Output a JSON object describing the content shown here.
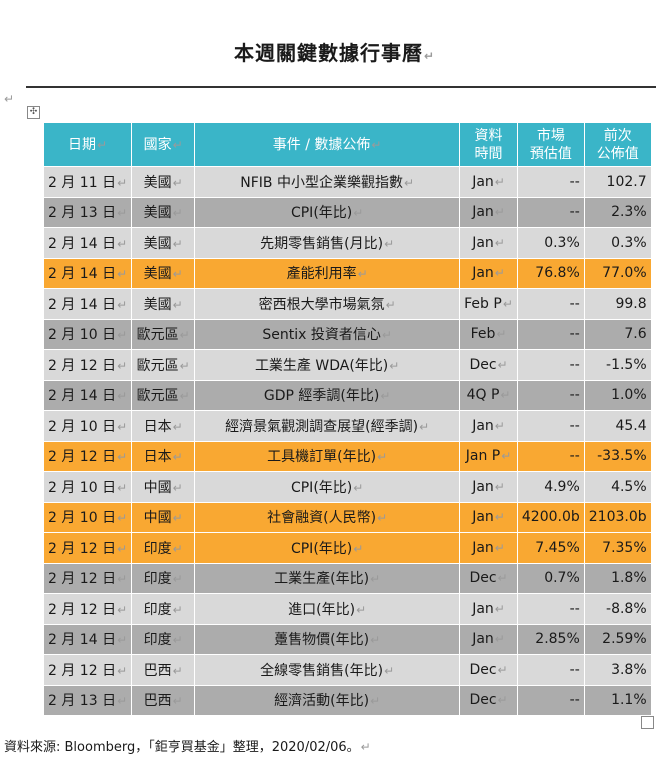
{
  "title": "本週關鍵數據行事曆",
  "paragraph_mark": "↵",
  "move_handle_glyph": "✣",
  "table": {
    "headers": {
      "date": "日期",
      "country": "國家",
      "event": "事件 / 數據公佈",
      "period": [
        "資料",
        "時間"
      ],
      "forecast": [
        "市場",
        "預估值"
      ],
      "previous": [
        "前次",
        "公佈值"
      ]
    },
    "row_colors": {
      "header": "#3ab5c8",
      "light": "#d9d9d9",
      "dark": "#acacac",
      "highlight": "#f9a832"
    },
    "rows": [
      {
        "date": "2 月 11 日",
        "country": "美國",
        "event": "NFIB 中小型企業樂觀指數",
        "period": "Jan",
        "forecast": "--",
        "previous": "102.7",
        "style": "light"
      },
      {
        "date": "2 月 13 日",
        "country": "美國",
        "event": "CPI(年比)",
        "period": "Jan",
        "forecast": "--",
        "previous": "2.3%",
        "style": "dark"
      },
      {
        "date": "2 月 14 日",
        "country": "美國",
        "event": "先期零售銷售(月比)",
        "period": "Jan",
        "forecast": "0.3%",
        "previous": "0.3%",
        "style": "light"
      },
      {
        "date": "2 月 14 日",
        "country": "美國",
        "event": "產能利用率",
        "period": "Jan",
        "forecast": "76.8%",
        "previous": "77.0%",
        "style": "orange"
      },
      {
        "date": "2 月 14 日",
        "country": "美國",
        "event": "密西根大學市場氣氛",
        "period": "Feb P",
        "forecast": "--",
        "previous": "99.8",
        "style": "light"
      },
      {
        "date": "2 月 10 日",
        "country": "歐元區",
        "event": "Sentix 投資者信心",
        "period": "Feb",
        "forecast": "--",
        "previous": "7.6",
        "style": "dark"
      },
      {
        "date": "2 月 12 日",
        "country": "歐元區",
        "event": "工業生產 WDA(年比)",
        "period": "Dec",
        "forecast": "--",
        "previous": "-1.5%",
        "style": "light"
      },
      {
        "date": "2 月 14 日",
        "country": "歐元區",
        "event": "GDP 經季調(年比)",
        "period": "4Q P",
        "forecast": "--",
        "previous": "1.0%",
        "style": "dark"
      },
      {
        "date": "2 月 10 日",
        "country": "日本",
        "event": "經濟景氣觀測調查展望(經季調)",
        "period": "Jan",
        "forecast": "--",
        "previous": "45.4",
        "style": "light"
      },
      {
        "date": "2 月 12 日",
        "country": "日本",
        "event": "工具機訂單(年比)",
        "period": "Jan P",
        "forecast": "--",
        "previous": "-33.5%",
        "style": "orange"
      },
      {
        "date": "2 月 10 日",
        "country": "中國",
        "event": "CPI(年比)",
        "period": "Jan",
        "forecast": "4.9%",
        "previous": "4.5%",
        "style": "light"
      },
      {
        "date": "2 月 10 日",
        "country": "中國",
        "event": "社會融資(人民幣)",
        "period": "Jan",
        "forecast": "4200.0b",
        "previous": "2103.0b",
        "style": "orange"
      },
      {
        "date": "2 月 12 日",
        "country": "印度",
        "event": "CPI(年比)",
        "period": "Jan",
        "forecast": "7.45%",
        "previous": "7.35%",
        "style": "orange"
      },
      {
        "date": "2 月 12 日",
        "country": "印度",
        "event": "工業生產(年比)",
        "period": "Dec",
        "forecast": "0.7%",
        "previous": "1.8%",
        "style": "dark"
      },
      {
        "date": "2 月 12 日",
        "country": "印度",
        "event": "進口(年比)",
        "period": "Jan",
        "forecast": "--",
        "previous": "-8.8%",
        "style": "light"
      },
      {
        "date": "2 月 14 日",
        "country": "印度",
        "event": "躉售物價(年比)",
        "period": "Jan",
        "forecast": "2.85%",
        "previous": "2.59%",
        "style": "dark"
      },
      {
        "date": "2 月 12 日",
        "country": "巴西",
        "event": "全線零售銷售(年比)",
        "period": "Dec",
        "forecast": "--",
        "previous": "3.8%",
        "style": "light"
      },
      {
        "date": "2 月 13 日",
        "country": "巴西",
        "event": "經濟活動(年比)",
        "period": "Dec",
        "forecast": "--",
        "previous": "1.1%",
        "style": "dark"
      }
    ]
  },
  "source": "資料來源: Bloomberg，「鉅亨買基金」整理，2020/02/06。"
}
